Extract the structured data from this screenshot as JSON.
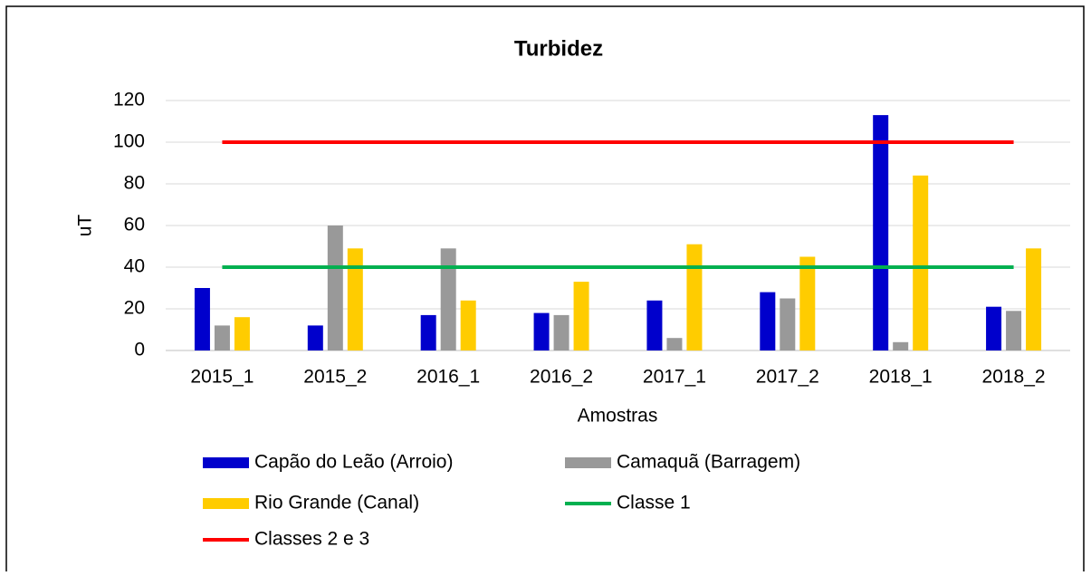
{
  "chart_data": {
    "type": "bar",
    "title": "Turbidez",
    "x_label": "Amostras",
    "y_label": "uT",
    "categories": [
      "2015_1",
      "2015_2",
      "2016_1",
      "2016_2",
      "2017_1",
      "2017_2",
      "2018_1",
      "2018_2"
    ],
    "series": [
      {
        "name": "Capão do Leão (Arroio)",
        "color": "#0000cc",
        "values": [
          30,
          12,
          17,
          18,
          24,
          28,
          113,
          21
        ]
      },
      {
        "name": "Camaquã (Barragem)",
        "color": "#999999",
        "values": [
          12,
          60,
          49,
          17,
          6,
          25,
          4,
          19
        ]
      },
      {
        "name": "Rio Grande (Canal)",
        "color": "#ffcc00",
        "values": [
          16,
          49,
          24,
          33,
          51,
          45,
          84,
          49
        ]
      },
      {
        "name": "Classe 1",
        "type": "line",
        "color": "#00b050",
        "values": [
          40,
          40,
          40,
          40,
          40,
          40,
          40,
          40
        ]
      },
      {
        "name": "Classes 2 e 3",
        "type": "line",
        "color": "#ff0000",
        "values": [
          100,
          100,
          100,
          100,
          100,
          100,
          100,
          100
        ]
      }
    ],
    "ylim": [
      0,
      120
    ],
    "yticks": [
      0,
      20,
      40,
      60,
      80,
      100,
      120
    ],
    "grid": true
  }
}
